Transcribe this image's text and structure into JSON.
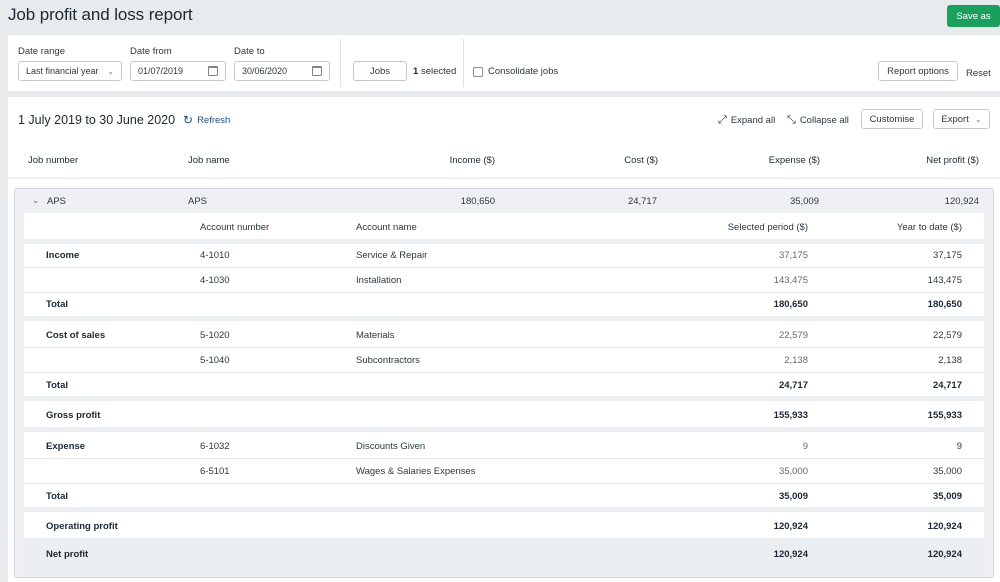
{
  "header": {
    "title": "Job profit and loss report",
    "save_label": "Save as"
  },
  "filters": {
    "date_range_label": "Date range",
    "date_range_value": "Last financial year",
    "date_from_label": "Date from",
    "date_from_value": "01/07/2019",
    "date_to_label": "Date to",
    "date_to_value": "30/06/2020",
    "jobs_button": "Jobs",
    "selected_count": "1",
    "selected_text": "selected",
    "consolidate_label": "Consolidate jobs",
    "report_options": "Report options",
    "reset": "Reset"
  },
  "report": {
    "period": "1 July 2019 to 30 June 2020",
    "refresh": "Refresh",
    "expand_all": "Expand all",
    "collapse_all": "Collapse all",
    "customise": "Customise",
    "export": "Export"
  },
  "columns": {
    "job_number": "Job number",
    "job_name": "Job name",
    "income": "Income ($)",
    "cost": "Cost ($)",
    "expense": "Expense ($)",
    "net_profit": "Net profit ($)"
  },
  "job": {
    "number": "APS",
    "name": "APS",
    "income": "180,650",
    "cost": "24,717",
    "expense": "35,009",
    "net_profit": "120,924"
  },
  "detail_columns": {
    "account_number": "Account number",
    "account_name": "Account name",
    "selected_period": "Selected period ($)",
    "ytd": "Year to date ($)"
  },
  "rows": [
    {
      "label": "Income",
      "acct": "4-1010",
      "name": "Service & Repair",
      "sel": "37,175",
      "ytd": "37,175"
    },
    {
      "label": "",
      "acct": "4-1030",
      "name": "Installation",
      "sel": "143,475",
      "ytd": "143,475"
    },
    {
      "label": "Total",
      "acct": "",
      "name": "",
      "sel": "180,650",
      "ytd": "180,650"
    },
    {
      "label": "Cost of sales",
      "acct": "5-1020",
      "name": "Materials",
      "sel": "22,579",
      "ytd": "22,579"
    },
    {
      "label": "",
      "acct": "5-1040",
      "name": "Subcontractors",
      "sel": "2,138",
      "ytd": "2,138"
    },
    {
      "label": "Total",
      "acct": "",
      "name": "",
      "sel": "24,717",
      "ytd": "24,717"
    },
    {
      "label": "Gross profit",
      "acct": "",
      "name": "",
      "sel": "155,933",
      "ytd": "155,933"
    },
    {
      "label": "Expense",
      "acct": "6-1032",
      "name": "Discounts Given",
      "sel": "9",
      "ytd": "9"
    },
    {
      "label": "",
      "acct": "6-5101",
      "name": "Wages & Salaries Expenses",
      "sel": "35,000",
      "ytd": "35,000"
    },
    {
      "label": "Total",
      "acct": "",
      "name": "",
      "sel": "35,009",
      "ytd": "35,009"
    },
    {
      "label": "Operating profit",
      "acct": "",
      "name": "",
      "sel": "120,924",
      "ytd": "120,924"
    },
    {
      "label": "Net profit",
      "acct": "",
      "name": "",
      "sel": "120,924",
      "ytd": "120,924"
    }
  ]
}
